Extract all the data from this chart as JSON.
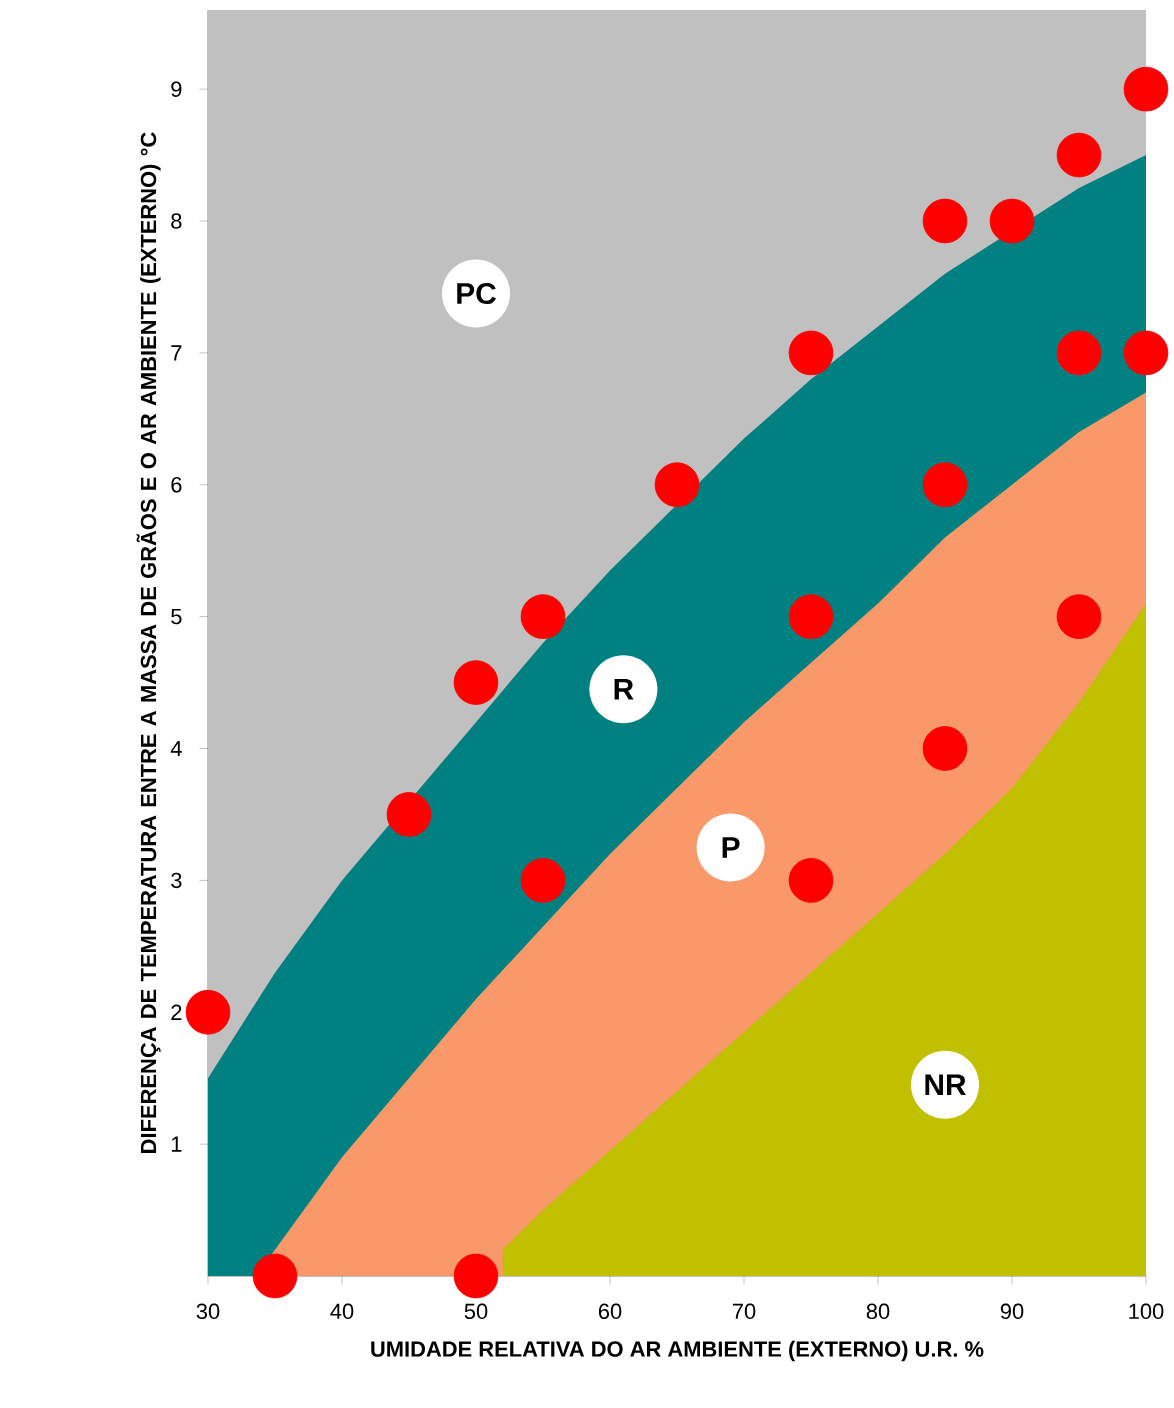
{
  "chart_data": {
    "type": "area",
    "xlabel": "UMIDADE RELATIVA DO AR AMBIENTE (EXTERNO) U.R. %",
    "ylabel": "DIFERENÇA DE TEMPERATURA ENTRE A MASSA DE GRÃOS E O AR AMBIENTE (EXTERNO) °C",
    "xlim": [
      30,
      100
    ],
    "ylim": [
      0,
      9.6
    ],
    "xticks": [
      30,
      40,
      50,
      60,
      70,
      80,
      90,
      100
    ],
    "yticks": [
      1,
      2,
      3,
      4,
      5,
      6,
      7,
      8,
      9
    ],
    "bands": [
      {
        "axis": "y",
        "from": 0,
        "to": 9.6,
        "color": "#c0c0c0"
      }
    ],
    "series": [
      {
        "color": "#008080",
        "x": [
          30,
          35,
          40,
          50,
          55,
          60,
          65,
          70,
          75,
          80,
          85,
          95,
          100
        ],
        "values": [
          1.5,
          2.3,
          3.0,
          4.2,
          4.8,
          5.35,
          5.85,
          6.35,
          6.8,
          7.2,
          7.6,
          8.25,
          8.5
        ]
      },
      {
        "color": "#f99868",
        "x": [
          33.5,
          35,
          40,
          45,
          50,
          55,
          60,
          65,
          70,
          75,
          80,
          85,
          90,
          95,
          100
        ],
        "values": [
          0,
          0.2,
          0.9,
          1.5,
          2.1,
          2.65,
          3.2,
          3.7,
          4.2,
          4.65,
          5.1,
          5.6,
          6.0,
          6.4,
          6.7
        ]
      },
      {
        "color": "#c0c000",
        "x": [
          52,
          55,
          60,
          65,
          70,
          75,
          80,
          85,
          90,
          95,
          100
        ],
        "values": [
          0.2,
          0.5,
          0.95,
          1.4,
          1.85,
          2.3,
          2.75,
          3.2,
          3.7,
          4.35,
          5.1
        ]
      },
      {
        "type": "scatter",
        "marker": "circle",
        "color": "#ff0000",
        "x": [
          30,
          35,
          45,
          50,
          50,
          55,
          55,
          65,
          75,
          75,
          75,
          85,
          85,
          85,
          90,
          95,
          95,
          95,
          100,
          100
        ],
        "values": [
          2,
          0,
          3.5,
          4.5,
          0,
          5,
          3,
          6,
          7,
          5,
          3,
          8,
          6,
          4,
          8,
          8.5,
          7,
          5,
          9,
          7
        ]
      }
    ],
    "annotations": [
      {
        "text": "PC",
        "x": 50,
        "y": 7.45
      },
      {
        "text": "R",
        "x": 61,
        "y": 4.45
      },
      {
        "text": "P",
        "x": 69,
        "y": 3.25
      },
      {
        "text": "NR",
        "x": 85,
        "y": 1.45
      }
    ]
  }
}
